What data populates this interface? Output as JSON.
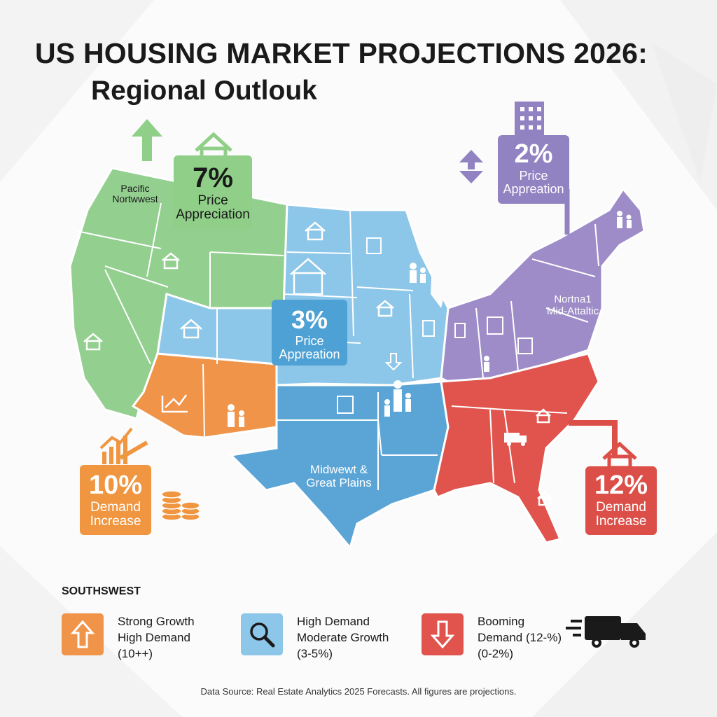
{
  "header": {
    "title": "US HOUSING MARKET PROJECTIONS 2026:",
    "subtitle": "Regional Outlouk"
  },
  "colors": {
    "pacific_northwest": "#93cf8f",
    "southwest": "#f0944a",
    "midwest_great_plains": "#8cc6e8",
    "midwest_dark": "#5aa5d6",
    "northeast_mid_atlantic": "#9d8cc8",
    "southeast": "#e0544d",
    "callout_green": "#8fcf87",
    "callout_purple": "#9182c1",
    "callout_blue": "#4ea1d4",
    "callout_orange": "#f09540",
    "callout_red": "#dc4f48"
  },
  "regions": {
    "pacific_northwest": {
      "label": "Pacific\nNortwwest"
    },
    "midwest_great_plains": {
      "label": "Midwewt &\nGreat Plains"
    },
    "northeast": {
      "label": "Nortna1\nMid-Attaltic"
    }
  },
  "callouts": {
    "pnw": {
      "pct": "7%",
      "text": "Price\nAppreciation"
    },
    "northeast": {
      "pct": "2%",
      "text": "Price\nAppreation"
    },
    "midwest": {
      "pct": "3%",
      "text": "Price\nAppreation"
    },
    "southwest": {
      "pct": "10%",
      "text": "Demand\nIncrease"
    },
    "southeast": {
      "pct": "12%",
      "text": "Demand\nIncrease"
    }
  },
  "icons": {
    "arrow_up": "arrow-up-icon",
    "arrow_updown": "arrow-up-down-icon",
    "house": "house-icon",
    "family": "family-icon",
    "building": "building-icon",
    "chart": "growth-chart-icon",
    "coins": "coin-stack-icon",
    "truck": "truck-icon",
    "search": "magnifier-icon"
  },
  "legend": {
    "heading": "SOUTHSWEST",
    "items": [
      {
        "line1": "Strong Growth",
        "line2": "High Demand",
        "line3": "(10++)",
        "color": "#f0944a",
        "icon": "up-arrow-icon"
      },
      {
        "line1": "High Demand",
        "line2": "Moderate Growth",
        "line3": "(3-5%)",
        "color": "#8cc6e8",
        "icon": "magnifier-icon"
      },
      {
        "line1": "Booming",
        "line2": "Demand (12-%)",
        "line3": "(0-2%)",
        "color": "#e0544d",
        "icon": "down-arrow-icon"
      }
    ]
  },
  "footnote": "Data Source: Real Estate Analytics 2025 Forecasts. All figures are projections."
}
